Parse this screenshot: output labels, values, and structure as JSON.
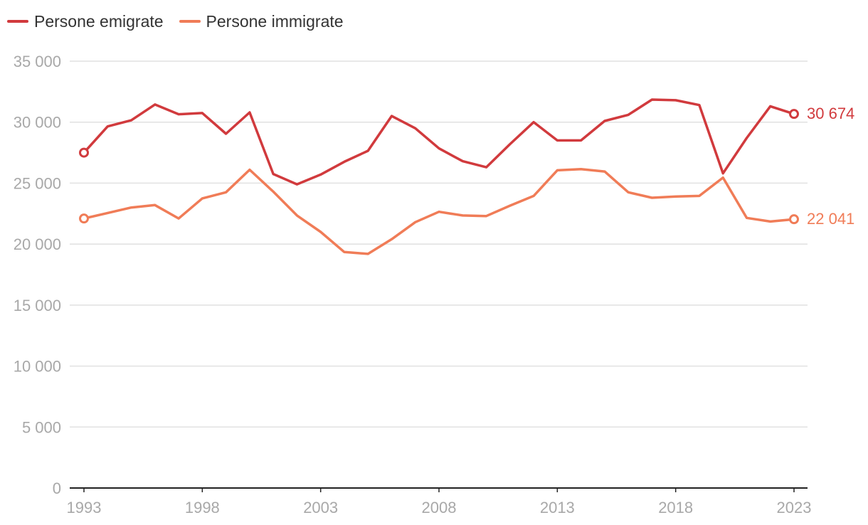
{
  "chart_data": {
    "type": "line",
    "title": "",
    "xlabel": "",
    "ylabel": "",
    "x": [
      1993,
      1994,
      1995,
      1996,
      1997,
      1998,
      1999,
      2000,
      2001,
      2002,
      2003,
      2004,
      2005,
      2006,
      2007,
      2008,
      2009,
      2010,
      2011,
      2012,
      2013,
      2014,
      2015,
      2016,
      2017,
      2018,
      2019,
      2020,
      2021,
      2022,
      2023
    ],
    "xlim": [
      1993,
      2023
    ],
    "xticks": [
      1993,
      1998,
      2003,
      2008,
      2013,
      2018,
      2023
    ],
    "ylim": [
      0,
      35000
    ],
    "yticks": [
      0,
      5000,
      10000,
      15000,
      20000,
      25000,
      30000,
      35000
    ],
    "ytick_labels": [
      "0",
      "5 000",
      "10 000",
      "15 000",
      "20 000",
      "25 000",
      "30 000",
      "35 000"
    ],
    "grid": true,
    "legend_position": "top-left",
    "series": [
      {
        "name": "Persone emigrate",
        "color": "#d13a3d",
        "values": [
          27500,
          29650,
          30150,
          31450,
          30650,
          30750,
          29050,
          30800,
          25750,
          24900,
          25700,
          26750,
          27650,
          30500,
          29500,
          27850,
          26800,
          26300,
          28200,
          30000,
          28500,
          28500,
          30100,
          30600,
          31850,
          31800,
          31400,
          25800,
          28700,
          31300,
          30674
        ],
        "end_label": "30 674"
      },
      {
        "name": "Persone immigrate",
        "color": "#f07c57",
        "values": [
          22100,
          22550,
          23000,
          23200,
          22100,
          23750,
          24250,
          26100,
          24300,
          22350,
          21000,
          19350,
          19200,
          20400,
          21800,
          22650,
          22350,
          22300,
          23150,
          23950,
          26050,
          26150,
          25950,
          24250,
          23800,
          23900,
          23950,
          25450,
          22150,
          21850,
          22041
        ],
        "end_label": "22 041"
      }
    ]
  }
}
